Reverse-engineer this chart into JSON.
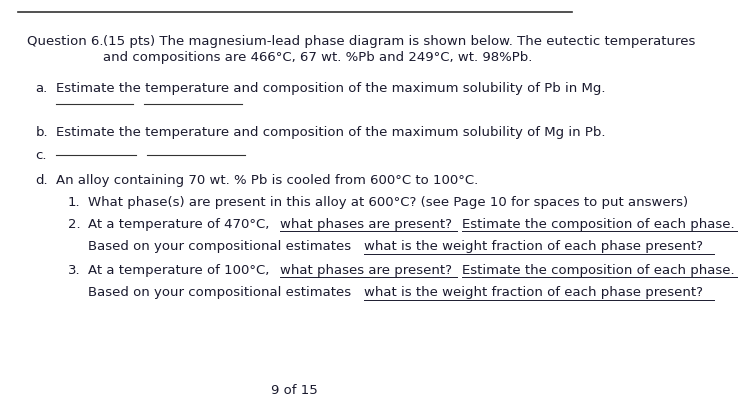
{
  "bg_color": "#ffffff",
  "text_color": "#1a1a2e",
  "header_label": "Question 6.",
  "header_text_line1": "(15 pts) The magnesium-lead phase diagram is shown below. The eutectic temperatures",
  "header_text_line2": "and compositions are 466°C, 67 wt. %Pb and 249°C, wt. 98%Pb.",
  "part_a_label": "a.",
  "part_a_text": "Estimate the temperature and composition of the maximum solubility of Pb in Mg.",
  "part_b_label": "b.",
  "part_b_text": "Estimate the temperature and composition of the maximum solubility of Mg in Pb.",
  "part_c_label": "c.",
  "part_d_label": "d.",
  "part_d_text": "An alloy containing 70 wt. % Pb is cooled from 600°C to 100°C.",
  "sub1_num": "1.",
  "sub1_text": "What phase(s) are present in this alloy at 600°C? (see Page 10 for spaces to put answers)",
  "sub2_num": "2.",
  "sub2_parts": [
    [
      "At a temperature of 470°C, ",
      false
    ],
    [
      "what phases are present?",
      true
    ],
    [
      " ",
      false
    ],
    [
      "Estimate the composition of each phase.",
      true
    ]
  ],
  "sub2_line2": [
    [
      "Based on your compositional estimates ",
      false
    ],
    [
      "what is the weight fraction of each phase present?",
      true
    ]
  ],
  "sub3_num": "3.",
  "sub3_parts": [
    [
      "At a temperature of 100°C, ",
      false
    ],
    [
      "what phases are present?",
      true
    ],
    [
      " ",
      false
    ],
    [
      "Estimate the composition of each phase.",
      true
    ]
  ],
  "sub3_line2": [
    [
      "Based on your compositional estimates ",
      false
    ],
    [
      "what is the weight fraction of each phase present?",
      true
    ]
  ],
  "footer": "9 of 15",
  "font_family": "DejaVu Sans",
  "font_size": 9.5,
  "line_color": "#333333"
}
